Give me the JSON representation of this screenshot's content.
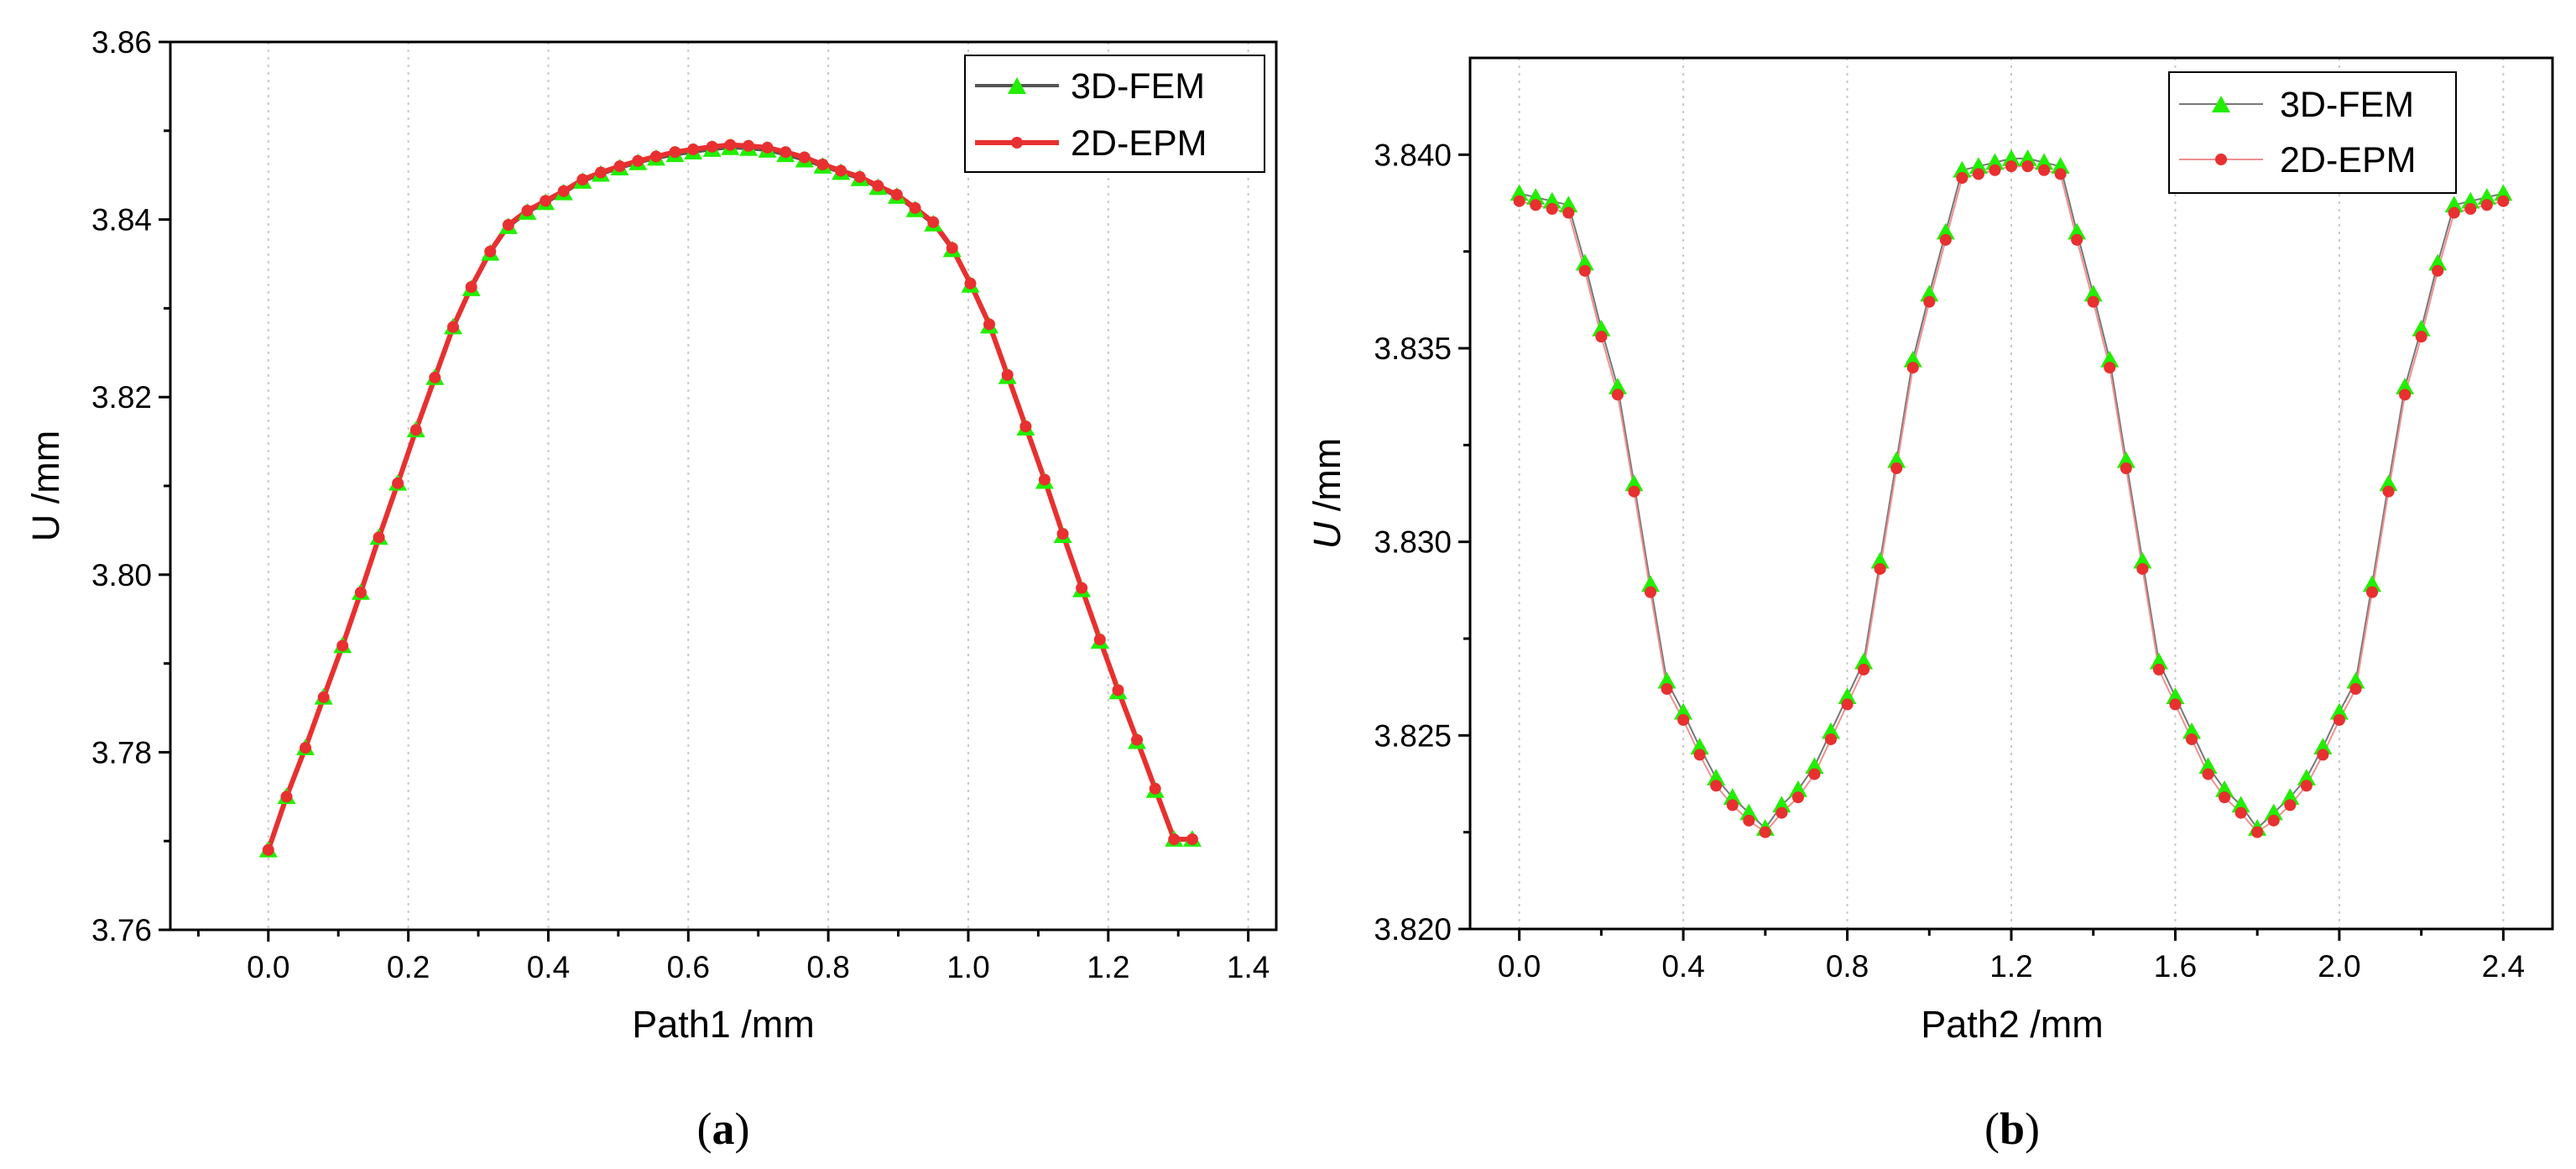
{
  "chart_data": [
    {
      "type": "line",
      "caption_open": "(",
      "caption_letter": "a",
      "caption_close": ")",
      "xlabel": "Path1 /mm",
      "ylabel": "U /mm",
      "xlim": [
        -0.14,
        1.44
      ],
      "ylim": [
        3.76,
        3.86
      ],
      "xticks": [
        0.0,
        0.2,
        0.4,
        0.6,
        0.8,
        1.0,
        1.2,
        1.4
      ],
      "xtick_labels": [
        "0.0",
        "0.2",
        "0.4",
        "0.6",
        "0.8",
        "1.0",
        "1.2",
        "1.4"
      ],
      "yticks": [
        3.76,
        3.78,
        3.8,
        3.82,
        3.84,
        3.86
      ],
      "ytick_labels": [
        "3.76",
        "3.78",
        "3.80",
        "3.82",
        "3.84",
        "3.86"
      ],
      "grid": "vertical-dotted",
      "legend": "top-right",
      "series": [
        {
          "name": "3D-FEM",
          "color": "#555555",
          "marker": "triangle",
          "marker_color": "#22ee00",
          "x": [
            0.0,
            0.026,
            0.053,
            0.079,
            0.106,
            0.132,
            0.158,
            0.185,
            0.211,
            0.238,
            0.264,
            0.29,
            0.317,
            0.343,
            0.37,
            0.396,
            0.422,
            0.449,
            0.475,
            0.502,
            0.528,
            0.554,
            0.581,
            0.607,
            0.634,
            0.66,
            0.686,
            0.713,
            0.739,
            0.766,
            0.792,
            0.818,
            0.845,
            0.871,
            0.898,
            0.924,
            0.95,
            0.977,
            1.003,
            1.03,
            1.056,
            1.082,
            1.109,
            1.135,
            1.162,
            1.188,
            1.214,
            1.241,
            1.267,
            1.294,
            1.32
          ],
          "y": [
            3.769,
            3.775,
            3.7805,
            3.7862,
            3.792,
            3.798,
            3.8042,
            3.8103,
            3.8163,
            3.8222,
            3.8279,
            3.8322,
            3.8362,
            3.8392,
            3.8408,
            3.8419,
            3.843,
            3.8443,
            3.8451,
            3.8458,
            3.8464,
            3.8469,
            3.8473,
            3.8476,
            3.8479,
            3.8481,
            3.848,
            3.8478,
            3.8473,
            3.8467,
            3.846,
            3.8453,
            3.8446,
            3.8436,
            3.8426,
            3.8411,
            3.8395,
            3.8366,
            3.8326,
            3.828,
            3.8223,
            3.8165,
            3.8105,
            3.8044,
            3.7983,
            3.7925,
            3.7868,
            3.7812,
            3.7757,
            3.7702,
            3.7702
          ]
        },
        {
          "name": "2D-EPM",
          "color": "#e83030",
          "marker": "circle",
          "marker_color": "#e83030",
          "x": [
            0.0,
            0.026,
            0.053,
            0.079,
            0.106,
            0.132,
            0.158,
            0.185,
            0.211,
            0.238,
            0.264,
            0.29,
            0.317,
            0.343,
            0.37,
            0.396,
            0.422,
            0.449,
            0.475,
            0.502,
            0.528,
            0.554,
            0.581,
            0.607,
            0.634,
            0.66,
            0.686,
            0.713,
            0.739,
            0.766,
            0.792,
            0.818,
            0.845,
            0.871,
            0.898,
            0.924,
            0.95,
            0.977,
            1.003,
            1.03,
            1.056,
            1.082,
            1.109,
            1.135,
            1.162,
            1.188,
            1.214,
            1.241,
            1.267,
            1.294,
            1.32
          ],
          "y": [
            3.769,
            3.775,
            3.7805,
            3.7862,
            3.792,
            3.798,
            3.8042,
            3.8103,
            3.8163,
            3.8222,
            3.8279,
            3.8324,
            3.8364,
            3.8394,
            3.841,
            3.8421,
            3.8432,
            3.8445,
            3.8453,
            3.846,
            3.8466,
            3.8471,
            3.8476,
            3.8479,
            3.8482,
            3.8484,
            3.8483,
            3.8481,
            3.8476,
            3.847,
            3.8462,
            3.8455,
            3.8448,
            3.8438,
            3.8428,
            3.8413,
            3.8397,
            3.8368,
            3.8328,
            3.8282,
            3.8225,
            3.8167,
            3.8107,
            3.8046,
            3.7985,
            3.7927,
            3.787,
            3.7814,
            3.7759,
            3.7702,
            3.7702
          ]
        }
      ]
    },
    {
      "type": "line",
      "caption_open": "(",
      "caption_letter": "b",
      "caption_close": ")",
      "xlabel": "Path2 /mm",
      "ylabel_italic": "U",
      "ylabel_rest": " /mm",
      "xlim": [
        -0.12,
        2.52
      ],
      "ylim": [
        3.82,
        3.8425
      ],
      "xticks": [
        0.0,
        0.4,
        0.8,
        1.2,
        1.6,
        2.0,
        2.4
      ],
      "xtick_labels": [
        "0.0",
        "0.4",
        "0.8",
        "1.2",
        "1.6",
        "2.0",
        "2.4"
      ],
      "yticks": [
        3.82,
        3.825,
        3.83,
        3.835,
        3.84
      ],
      "ytick_labels": [
        "3.820",
        "3.825",
        "3.830",
        "3.835",
        "3.840"
      ],
      "grid": "vertical-dotted",
      "legend": "top-right",
      "series": [
        {
          "name": "3D-FEM",
          "color": "#777777",
          "marker": "triangle",
          "marker_color": "#22ee00",
          "x": [
            0.0,
            0.04,
            0.08,
            0.12,
            0.16,
            0.2,
            0.24,
            0.28,
            0.32,
            0.36,
            0.4,
            0.44,
            0.48,
            0.52,
            0.56,
            0.6,
            0.64,
            0.68,
            0.72,
            0.76,
            0.8,
            0.84,
            0.88,
            0.92,
            0.96,
            1.0,
            1.04,
            1.08,
            1.12,
            1.16,
            1.2,
            1.24,
            1.28,
            1.32,
            1.36,
            1.4,
            1.44,
            1.48,
            1.52,
            1.56,
            1.6,
            1.64,
            1.68,
            1.72,
            1.76,
            1.8,
            1.84,
            1.88,
            1.92,
            1.96,
            2.0,
            2.04,
            2.08,
            2.12,
            2.16,
            2.2,
            2.24,
            2.28,
            2.32,
            2.36,
            2.4
          ],
          "y": [
            3.839,
            3.8389,
            3.8388,
            3.8387,
            3.8372,
            3.8355,
            3.834,
            3.8315,
            3.8289,
            3.8264,
            3.8256,
            3.8247,
            3.8239,
            3.8234,
            3.823,
            3.8226,
            3.8232,
            3.8236,
            3.8242,
            3.8251,
            3.826,
            3.8269,
            3.8295,
            3.8321,
            3.8347,
            3.8364,
            3.838,
            3.8396,
            3.8397,
            3.8398,
            3.8399,
            3.8399,
            3.8398,
            3.8397,
            3.838,
            3.8364,
            3.8347,
            3.8321,
            3.8295,
            3.8269,
            3.826,
            3.8251,
            3.8242,
            3.8236,
            3.8232,
            3.8226,
            3.823,
            3.8234,
            3.8239,
            3.8247,
            3.8256,
            3.8264,
            3.8289,
            3.8315,
            3.834,
            3.8355,
            3.8372,
            3.8387,
            3.8388,
            3.8389,
            3.839
          ]
        },
        {
          "name": "2D-EPM",
          "color": "#f09090",
          "marker": "circle",
          "marker_color": "#e83030",
          "x": [
            0.0,
            0.04,
            0.08,
            0.12,
            0.16,
            0.2,
            0.24,
            0.28,
            0.32,
            0.36,
            0.4,
            0.44,
            0.48,
            0.52,
            0.56,
            0.6,
            0.64,
            0.68,
            0.72,
            0.76,
            0.8,
            0.84,
            0.88,
            0.92,
            0.96,
            1.0,
            1.04,
            1.08,
            1.12,
            1.16,
            1.2,
            1.24,
            1.28,
            1.32,
            1.36,
            1.4,
            1.44,
            1.48,
            1.52,
            1.56,
            1.6,
            1.64,
            1.68,
            1.72,
            1.76,
            1.8,
            1.84,
            1.88,
            1.92,
            1.96,
            2.0,
            2.04,
            2.08,
            2.12,
            2.16,
            2.2,
            2.24,
            2.28,
            2.32,
            2.36,
            2.4
          ],
          "y": [
            3.8388,
            3.8387,
            3.8386,
            3.8385,
            3.837,
            3.8353,
            3.8338,
            3.8313,
            3.8287,
            3.8262,
            3.8254,
            3.8245,
            3.8237,
            3.8232,
            3.8228,
            3.8225,
            3.823,
            3.8234,
            3.824,
            3.8249,
            3.8258,
            3.8267,
            3.8293,
            3.8319,
            3.8345,
            3.8362,
            3.8378,
            3.8394,
            3.8395,
            3.8396,
            3.8397,
            3.8397,
            3.8396,
            3.8395,
            3.8378,
            3.8362,
            3.8345,
            3.8319,
            3.8293,
            3.8267,
            3.8258,
            3.8249,
            3.824,
            3.8234,
            3.823,
            3.8225,
            3.8228,
            3.8232,
            3.8237,
            3.8245,
            3.8254,
            3.8262,
            3.8287,
            3.8313,
            3.8338,
            3.8353,
            3.837,
            3.8385,
            3.8386,
            3.8387,
            3.8388
          ]
        }
      ]
    }
  ]
}
